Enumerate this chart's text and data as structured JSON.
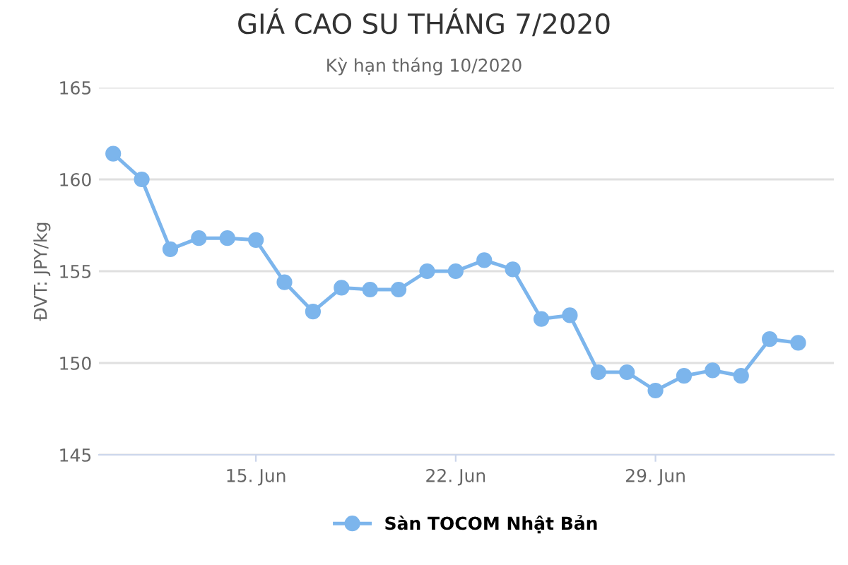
{
  "chart_data": {
    "type": "line",
    "title": "GIÁ CAO SU THÁNG 7/2020",
    "subtitle": "Kỳ hạn tháng 10/2020",
    "ylabel": "ĐVT: JPY/kg",
    "x": [
      "2020-06-10",
      "2020-06-11",
      "2020-06-12",
      "2020-06-13",
      "2020-06-14",
      "2020-06-15",
      "2020-06-16",
      "2020-06-17",
      "2020-06-18",
      "2020-06-19",
      "2020-06-20",
      "2020-06-21",
      "2020-06-22",
      "2020-06-23",
      "2020-06-24",
      "2020-06-25",
      "2020-06-26",
      "2020-06-27",
      "2020-06-28",
      "2020-06-29",
      "2020-06-30",
      "2020-07-01",
      "2020-07-02",
      "2020-07-03",
      "2020-07-04"
    ],
    "series": [
      {
        "name": "Sàn TOCOM Nhật Bản",
        "color": "#7cb5ec",
        "values": [
          161.4,
          160.0,
          156.2,
          156.8,
          156.8,
          156.7,
          154.4,
          152.8,
          154.1,
          154.0,
          154.0,
          155.0,
          155.0,
          155.6,
          155.1,
          152.4,
          152.6,
          149.5,
          149.5,
          148.5,
          149.3,
          149.6,
          149.3,
          151.3,
          151.1
        ]
      }
    ],
    "xlim": [
      "2020-06-09T12:00",
      "2020-07-05T06:00"
    ],
    "xticks": [
      {
        "value": "2020-06-15",
        "label": "15. Jun"
      },
      {
        "value": "2020-06-22",
        "label": "22. Jun"
      },
      {
        "value": "2020-06-29",
        "label": "29. Jun"
      }
    ],
    "ylim": [
      145,
      165
    ],
    "yticks": [
      145,
      150,
      155,
      160,
      165
    ],
    "grid": "y",
    "legend": "bottom",
    "marker": "circle",
    "line_style": "solid"
  }
}
